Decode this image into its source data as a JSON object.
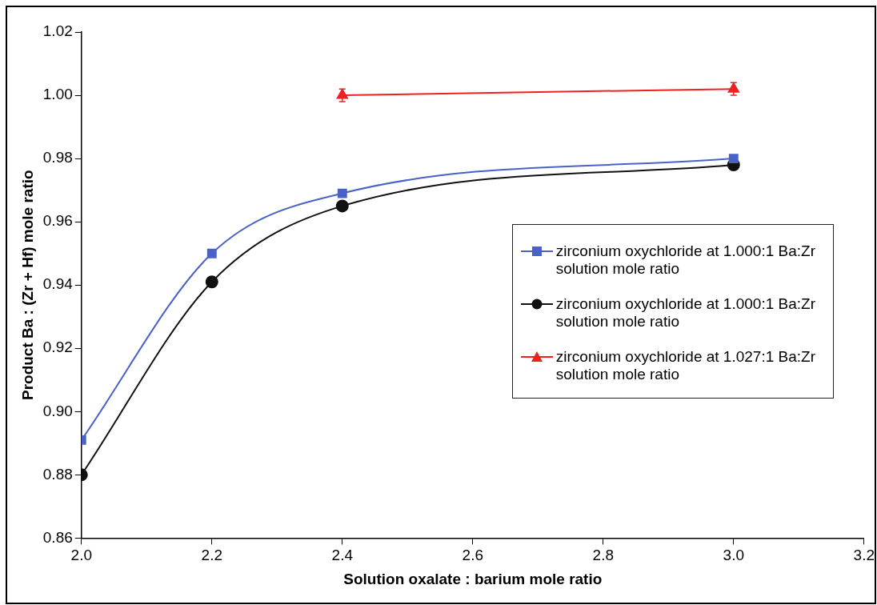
{
  "chart_data": {
    "type": "line",
    "xlabel": "Solution oxalate : barium mole ratio",
    "ylabel": "Product Ba : (Zr + Hf) mole ratio",
    "xlim": [
      2.0,
      3.2
    ],
    "xticks": [
      {
        "value": 2.0,
        "label": "2.0"
      },
      {
        "value": 2.2,
        "label": "2.2"
      },
      {
        "value": 2.4,
        "label": "2.4"
      },
      {
        "value": 2.6,
        "label": "2.6"
      },
      {
        "value": 2.8,
        "label": "2.8"
      },
      {
        "value": 3.0,
        "label": "3.0"
      },
      {
        "value": 3.2,
        "label": "3.2"
      }
    ],
    "ylim": [
      0.86,
      1.02
    ],
    "yticks": [
      {
        "value": 0.86,
        "label": "0.86"
      },
      {
        "value": 0.88,
        "label": "0.88"
      },
      {
        "value": 0.9,
        "label": "0.90"
      },
      {
        "value": 0.92,
        "label": "0.92"
      },
      {
        "value": 0.94,
        "label": "0.94"
      },
      {
        "value": 0.96,
        "label": "0.96"
      },
      {
        "value": 0.98,
        "label": "0.98"
      },
      {
        "value": 1.0,
        "label": "1.00"
      },
      {
        "value": 1.02,
        "label": "1.02"
      }
    ],
    "grid": false,
    "legend": "right",
    "line_style": "solid",
    "series": [
      {
        "name": "zirconium oxychloride at 1.000:1 Ba:Zr solution mole ratio",
        "color": "#4a62c8",
        "marker": "square",
        "x": [
          2.0,
          2.2,
          2.4,
          3.0
        ],
        "values": [
          0.891,
          0.95,
          0.969,
          0.98
        ]
      },
      {
        "name": "zirconium oxychloride at 1.000:1 Ba:Zr solution mole ratio",
        "color": "#111111",
        "marker": "circle",
        "x": [
          2.0,
          2.2,
          2.4,
          3.0
        ],
        "values": [
          0.88,
          0.941,
          0.965,
          0.978
        ]
      },
      {
        "name": "zirconium oxychloride at 1.027:1 Ba:Zr solution mole ratio",
        "color": "#f02020",
        "marker": "triangle",
        "x": [
          2.4,
          3.0
        ],
        "values": [
          1.0,
          1.002
        ],
        "errors": [
          0.002,
          0.002
        ]
      }
    ]
  }
}
